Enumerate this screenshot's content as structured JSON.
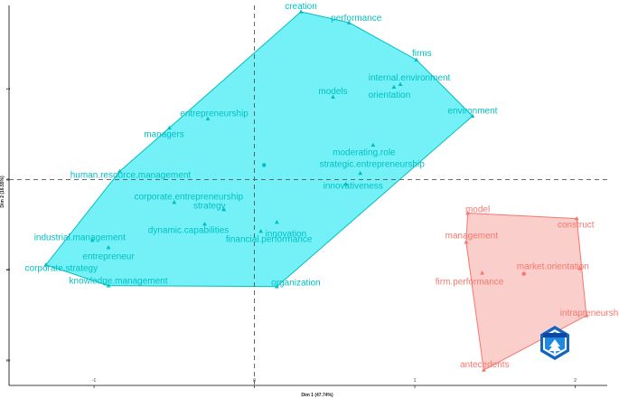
{
  "chart_data": {
    "type": "scatter",
    "title": "",
    "xlabel": "Dim 1 (47.74%)",
    "ylabel": "Dim 2 (16.55%)",
    "xlim": [
      -1.53,
      2.2
    ],
    "ylim": [
      -2.27,
      1.92
    ],
    "x_ticks": [
      -1,
      0,
      1,
      2
    ],
    "y_ticks": [
      1,
      0,
      -1,
      -2
    ],
    "grid": false,
    "legend": "none",
    "series": [
      {
        "color": "#00BFC4",
        "fill": "#00E5EE",
        "hull": [
          "creation",
          "performance",
          "firms",
          "environment",
          "organization",
          "knowledge.management",
          "corporate.strategy",
          "human.resource.management",
          "managers"
        ],
        "centroid": [
          0.06,
          0.16
        ],
        "points": [
          {
            "label": "creation",
            "x": 0.29,
            "y": 1.85,
            "dx": 0,
            "dy": -6
          },
          {
            "label": "performance",
            "x": 0.59,
            "y": 1.73,
            "dx": 8,
            "dy": -5
          },
          {
            "label": "firms",
            "x": 1.01,
            "y": 1.32,
            "dx": 6,
            "dy": -7
          },
          {
            "label": "internal.environment",
            "x": 0.91,
            "y": 1.05,
            "dx": 10,
            "dy": -7
          },
          {
            "label": "orientation",
            "x": 0.87,
            "y": 1.02,
            "dx": -5,
            "dy": 9
          },
          {
            "label": "models",
            "x": 0.49,
            "y": 0.91,
            "dx": 0,
            "dy": -6
          },
          {
            "label": "environment",
            "x": 1.36,
            "y": 0.7,
            "dx": 0,
            "dy": -6
          },
          {
            "label": "entrepreneurship",
            "x": -0.29,
            "y": 0.67,
            "dx": 7,
            "dy": -6
          },
          {
            "label": "managers",
            "x": -0.53,
            "y": 0.57,
            "dx": -6,
            "dy": 7
          },
          {
            "label": "moderating.role",
            "x": 0.74,
            "y": 0.38,
            "dx": -10,
            "dy": 8
          },
          {
            "label": "strategic.entrepreneurship",
            "x": 0.66,
            "y": 0.07,
            "dx": 13,
            "dy": -10
          },
          {
            "label": "innovativeness",
            "x": 0.57,
            "y": -0.05,
            "dx": 8,
            "dy": 2
          },
          {
            "label": "human.resource.management",
            "x": -0.84,
            "y": 0.09,
            "dx": 12,
            "dy": 4
          },
          {
            "label": "corporate.entrepreneurship",
            "x": -0.5,
            "y": -0.25,
            "dx": 16,
            "dy": -6
          },
          {
            "label": "strategy",
            "x": -0.19,
            "y": -0.33,
            "dx": -16,
            "dy": -4
          },
          {
            "label": "dynamic.capabilities",
            "x": -0.31,
            "y": -0.49,
            "dx": -18,
            "dy": 7
          },
          {
            "label": "innovation",
            "x": 0.14,
            "y": -0.47,
            "dx": 10,
            "dy": 13
          },
          {
            "label": "financial.performance",
            "x": 0.04,
            "y": -0.57,
            "dx": 9,
            "dy": 9
          },
          {
            "label": "industrial.management",
            "x": -1.01,
            "y": -0.67,
            "dx": -14,
            "dy": -3
          },
          {
            "label": "entrepreneur",
            "x": -0.91,
            "y": -0.75,
            "dx": 0,
            "dy": 10
          },
          {
            "label": "corporate.strategy",
            "x": -1.3,
            "y": -0.94,
            "dx": 17,
            "dy": 4
          },
          {
            "label": "knowledge.management",
            "x": -0.91,
            "y": -1.17,
            "dx": 11,
            "dy": -5
          },
          {
            "label": "organization",
            "x": 0.14,
            "y": -1.18,
            "dx": 21,
            "dy": -4
          }
        ]
      },
      {
        "color": "#F8766D",
        "fill": "#F4A6A0",
        "hull": [
          "model",
          "construct",
          "intrapreneurship",
          "antecedents",
          "management"
        ],
        "centroid": [
          1.68,
          -1.04
        ],
        "points": [
          {
            "label": "model",
            "x": 1.33,
            "y": -0.37,
            "dx": 11,
            "dy": -4
          },
          {
            "label": "construct",
            "x": 2.01,
            "y": -0.43,
            "dx": -1,
            "dy": 7
          },
          {
            "label": "management",
            "x": 1.32,
            "y": -0.69,
            "dx": 6,
            "dy": -7
          },
          {
            "label": "market.orientation",
            "x": 2.03,
            "y": -0.98,
            "dx": -30,
            "dy": -2
          },
          {
            "label": "firm.performance",
            "x": 1.42,
            "y": -1.03,
            "dx": -14,
            "dy": 10
          },
          {
            "label": "intrapreneurship",
            "x": 2.07,
            "y": -1.5,
            "dx": 7,
            "dy": -3
          },
          {
            "label": "antecedents",
            "x": 1.43,
            "y": -2.1,
            "dx": 1,
            "dy": -6
          }
        ]
      }
    ]
  }
}
